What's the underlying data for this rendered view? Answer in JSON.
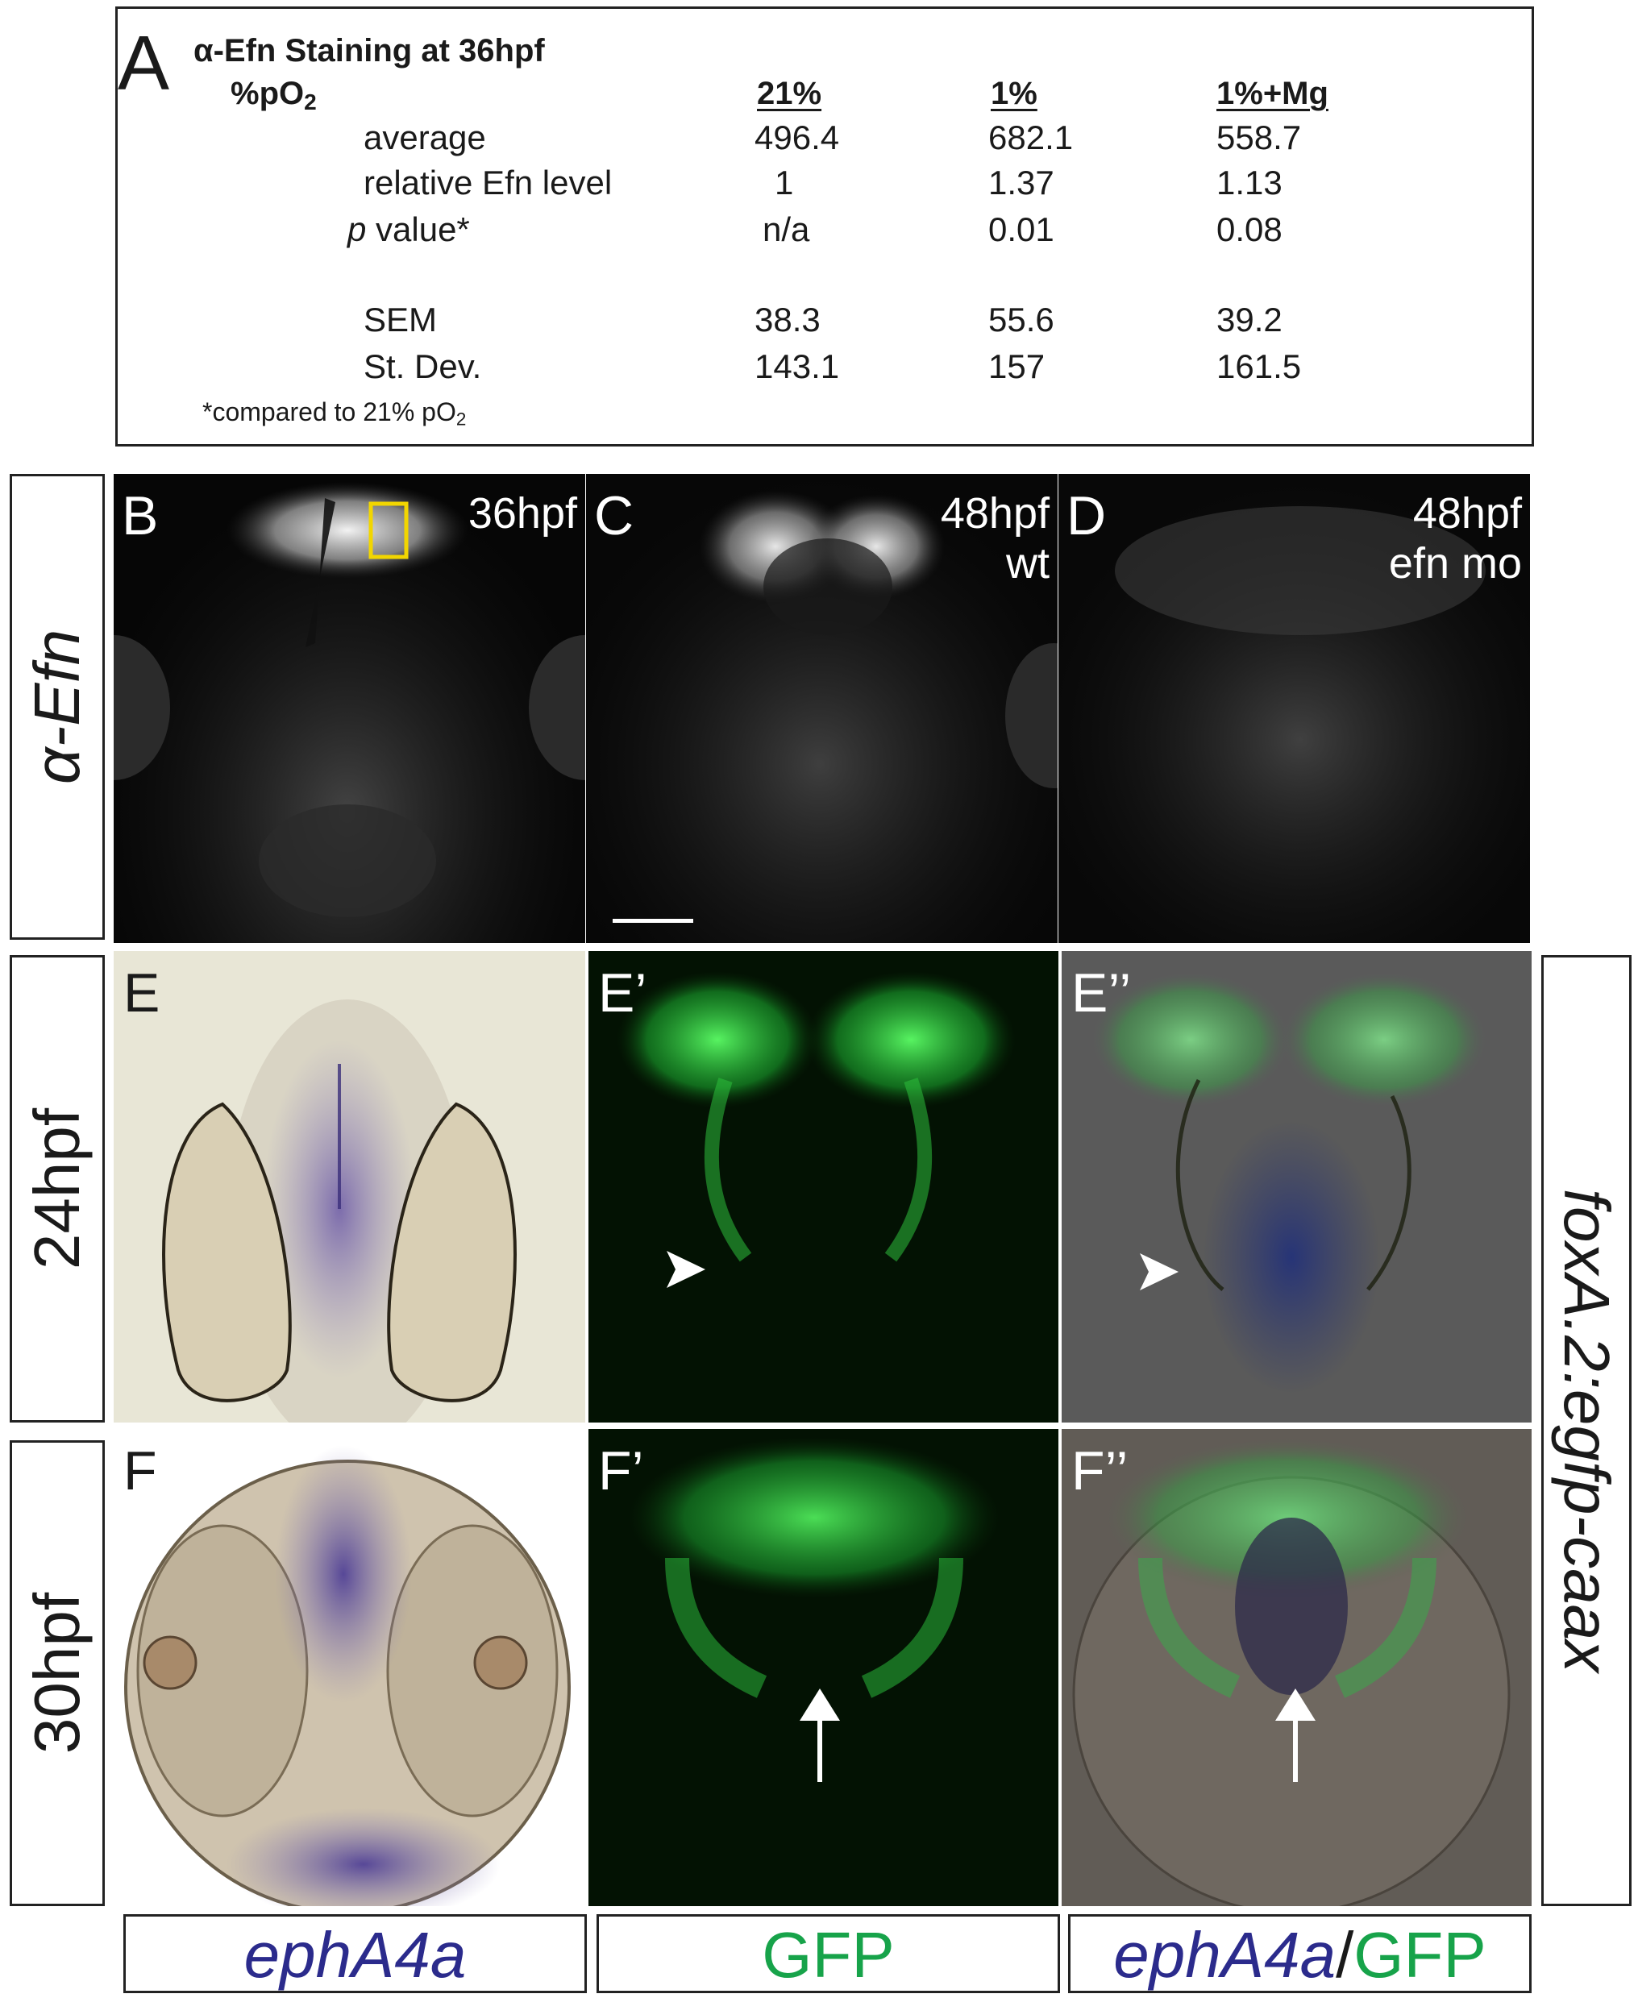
{
  "table": {
    "panel_letter": "A",
    "title": "α-Efn Staining at 36hpf",
    "row_header_main": "%pO",
    "row_header_sub": "2",
    "columns": [
      "21%",
      "1%",
      "1%+Mg"
    ],
    "rows": [
      {
        "label": "average",
        "values": [
          "496.4",
          "682.1",
          "558.7"
        ]
      },
      {
        "label": "relative Efn level",
        "values": [
          "1",
          "1.37",
          "1.13"
        ]
      },
      {
        "label_italic": "p",
        "label": " value*",
        "values": [
          "n/a",
          "0.01",
          "0.08"
        ]
      },
      {
        "label": "SEM",
        "values": [
          "38.3",
          "55.6",
          "39.2"
        ]
      },
      {
        "label": "St. Dev.",
        "values": [
          "143.1",
          "157",
          "161.5"
        ]
      }
    ],
    "footnote_main": "*compared to 21% pO",
    "footnote_sub": "2"
  },
  "row_labels": {
    "efn": "α-Efn",
    "t24": "24hpf",
    "t30": "30hpf",
    "transgene": "foxA.2:egfp-caax"
  },
  "panels": {
    "B": {
      "letter": "B",
      "stage": "36hpf"
    },
    "C": {
      "letter": "C",
      "stage": "48hpf",
      "condition": "wt"
    },
    "D": {
      "letter": "D",
      "stage": "48hpf",
      "condition": "efn mo"
    },
    "E": {
      "letter": "E"
    },
    "E1": {
      "letter": "E’"
    },
    "E2": {
      "letter": "E’’"
    },
    "F": {
      "letter": "F"
    },
    "F1": {
      "letter": "F’"
    },
    "F2": {
      "letter": "F’’"
    }
  },
  "bottom_labels": {
    "ephA4a": "ephA4a",
    "gfp": "GFP",
    "merge_a": "ephA4a",
    "merge_slash": "/",
    "merge_b": "GFP"
  },
  "colors": {
    "ephA4a_blue": "#2b2b8c",
    "gfp_green": "#17a34a",
    "highlight_box": "#f2d600"
  }
}
